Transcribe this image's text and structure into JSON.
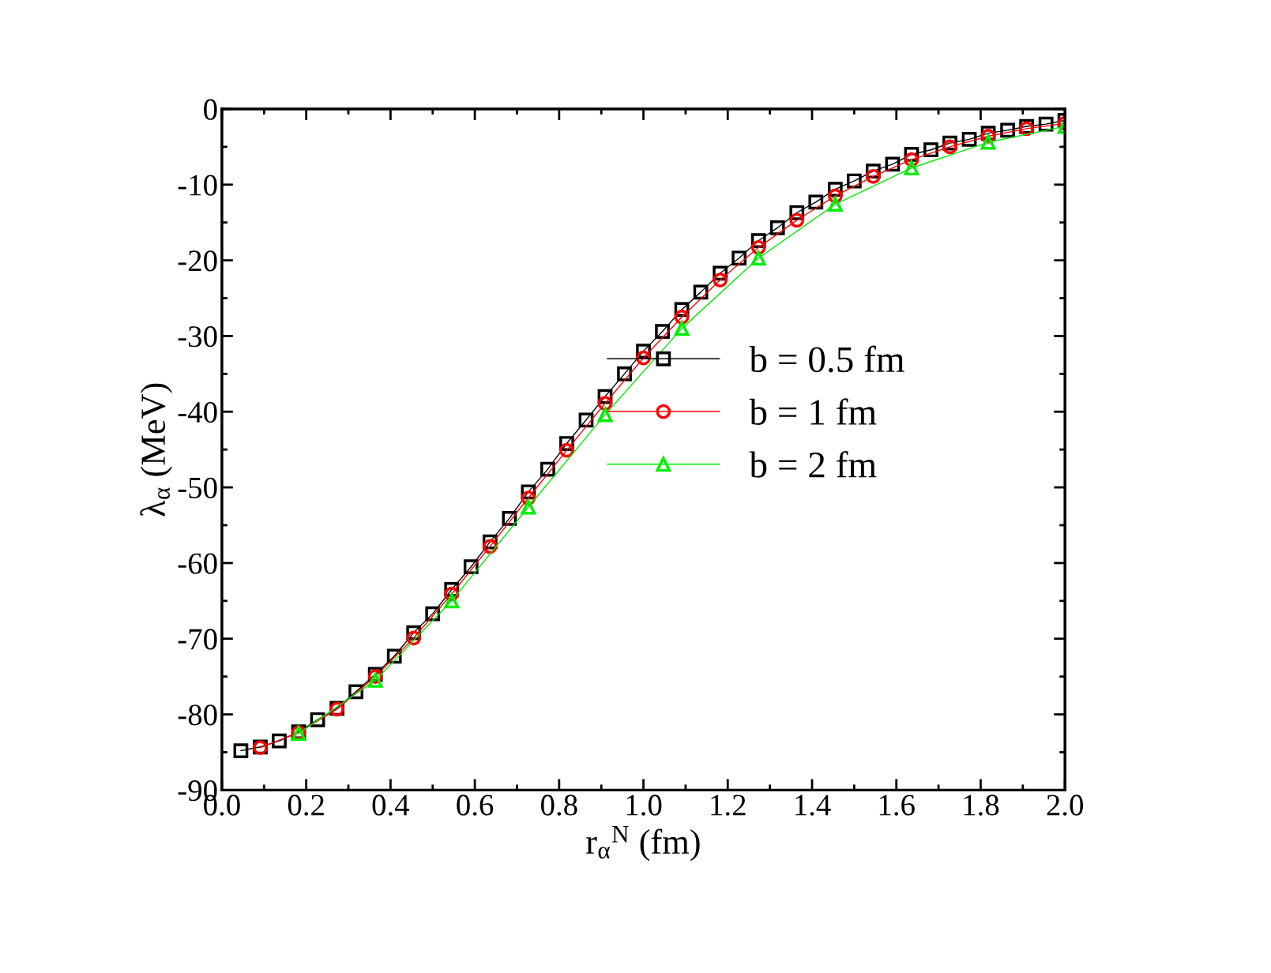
{
  "chart_data": {
    "type": "line",
    "xlabel": "r$_{α}$$^{N}$ (fm)",
    "ylabel": "λ$_{α}$ (MeV)",
    "xlim": [
      0.0,
      2.0
    ],
    "ylim": [
      -90,
      0
    ],
    "xticks": [
      {
        "value": 0.0,
        "label": "0.0"
      },
      {
        "value": 0.2,
        "label": "0.2"
      },
      {
        "value": 0.4,
        "label": "0.4"
      },
      {
        "value": 0.6,
        "label": "0.6"
      },
      {
        "value": 0.8,
        "label": "0.8"
      },
      {
        "value": 1.0,
        "label": "1.0"
      },
      {
        "value": 1.2,
        "label": "1.2"
      },
      {
        "value": 1.4,
        "label": "1.4"
      },
      {
        "value": 1.6,
        "label": "1.6"
      },
      {
        "value": 1.8,
        "label": "1.8"
      },
      {
        "value": 2.0,
        "label": "2.0"
      }
    ],
    "yticks": [
      {
        "value": -90,
        "label": "-90"
      },
      {
        "value": -80,
        "label": "-80"
      },
      {
        "value": -70,
        "label": "-70"
      },
      {
        "value": -60,
        "label": "-60"
      },
      {
        "value": -50,
        "label": "-50"
      },
      {
        "value": -40,
        "label": "-40"
      },
      {
        "value": -30,
        "label": "-30"
      },
      {
        "value": -20,
        "label": "-20"
      },
      {
        "value": -10,
        "label": "-10"
      },
      0
    ],
    "grid": false,
    "legend": "right",
    "line_style": "solid",
    "series": [
      {
        "name": "b = 0.5 fm",
        "color": "#000000",
        "marker": "square",
        "x": [
          0.045,
          0.091,
          0.136,
          0.182,
          0.227,
          0.273,
          0.318,
          0.364,
          0.409,
          0.455,
          0.5,
          0.545,
          0.591,
          0.636,
          0.682,
          0.727,
          0.773,
          0.818,
          0.864,
          0.909,
          0.955,
          1.0,
          1.045,
          1.091,
          1.136,
          1.182,
          1.227,
          1.273,
          1.318,
          1.364,
          1.409,
          1.455,
          1.5,
          1.545,
          1.591,
          1.636,
          1.682,
          1.727,
          1.773,
          1.818,
          1.864,
          1.909,
          1.955,
          2.0
        ],
        "values": [
          -84.8,
          -84.3,
          -83.5,
          -82.3,
          -80.7,
          -79.2,
          -77.0,
          -74.7,
          -72.3,
          -69.2,
          -66.7,
          -63.5,
          -60.5,
          -57.2,
          -54.1,
          -50.6,
          -47.6,
          -44.2,
          -41.1,
          -38.0,
          -35.0,
          -32.0,
          -29.4,
          -26.5,
          -24.2,
          -21.7,
          -19.7,
          -17.4,
          -15.7,
          -13.7,
          -12.3,
          -10.6,
          -9.5,
          -8.2,
          -7.3,
          -6.0,
          -5.4,
          -4.5,
          -4.0,
          -3.2,
          -2.8,
          -2.3,
          -2.0,
          -1.5
        ]
      },
      {
        "name": "b = 1 fm",
        "color": "#ff0000",
        "marker": "circle",
        "x": [
          0.091,
          0.182,
          0.273,
          0.364,
          0.455,
          0.545,
          0.636,
          0.727,
          0.818,
          0.909,
          1.0,
          1.091,
          1.182,
          1.273,
          1.364,
          1.455,
          1.545,
          1.636,
          1.727,
          1.818,
          1.909,
          2.0
        ],
        "values": [
          -84.4,
          -82.4,
          -79.3,
          -75.0,
          -69.9,
          -64.1,
          -57.8,
          -51.4,
          -45.1,
          -38.9,
          -32.9,
          -27.5,
          -22.6,
          -18.3,
          -14.7,
          -11.5,
          -8.9,
          -6.7,
          -5.0,
          -3.6,
          -2.6,
          -1.9
        ]
      },
      {
        "name": "b = 2 fm",
        "color": "#00ee00",
        "marker": "triangle",
        "x": [
          0.182,
          0.364,
          0.545,
          0.727,
          0.909,
          1.091,
          1.273,
          1.455,
          1.636,
          1.818,
          2.0
        ],
        "values": [
          -82.5,
          -75.5,
          -65.0,
          -52.6,
          -40.4,
          -29.0,
          -19.7,
          -12.6,
          -7.8,
          -4.4,
          -2.3
        ]
      }
    ]
  }
}
